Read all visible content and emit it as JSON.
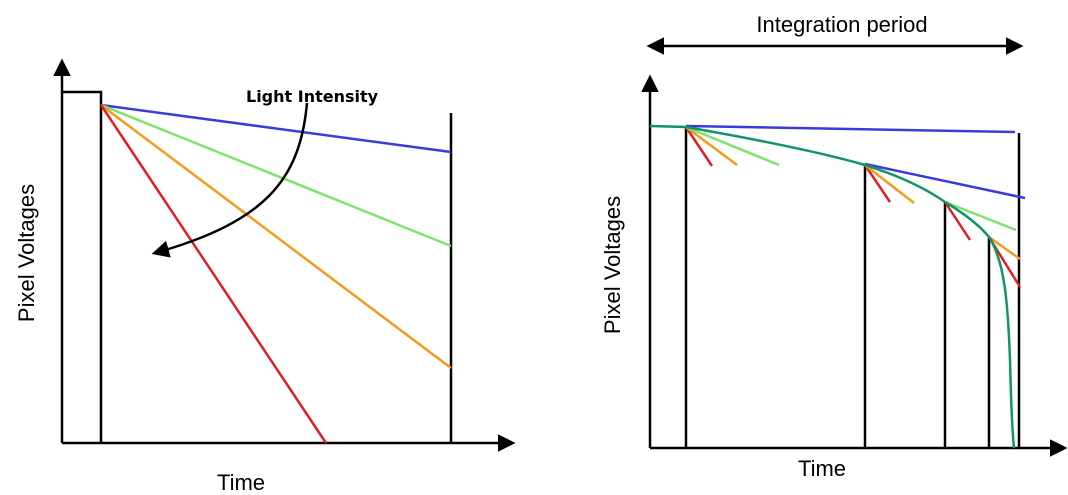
{
  "colors": {
    "axis": "#000000",
    "blue": "#3b3bdc",
    "green": "#7ee36a",
    "orange": "#f59b1c",
    "red": "#e02020",
    "teal": "#11946a"
  },
  "left_diagram": {
    "ylabel": "Pixel Voltages",
    "xlabel": "Time",
    "annotation": "Light Intensity"
  },
  "right_diagram": {
    "ylabel": "Pixel Voltages",
    "xlabel": "Time",
    "period_label": "Integration period"
  }
}
